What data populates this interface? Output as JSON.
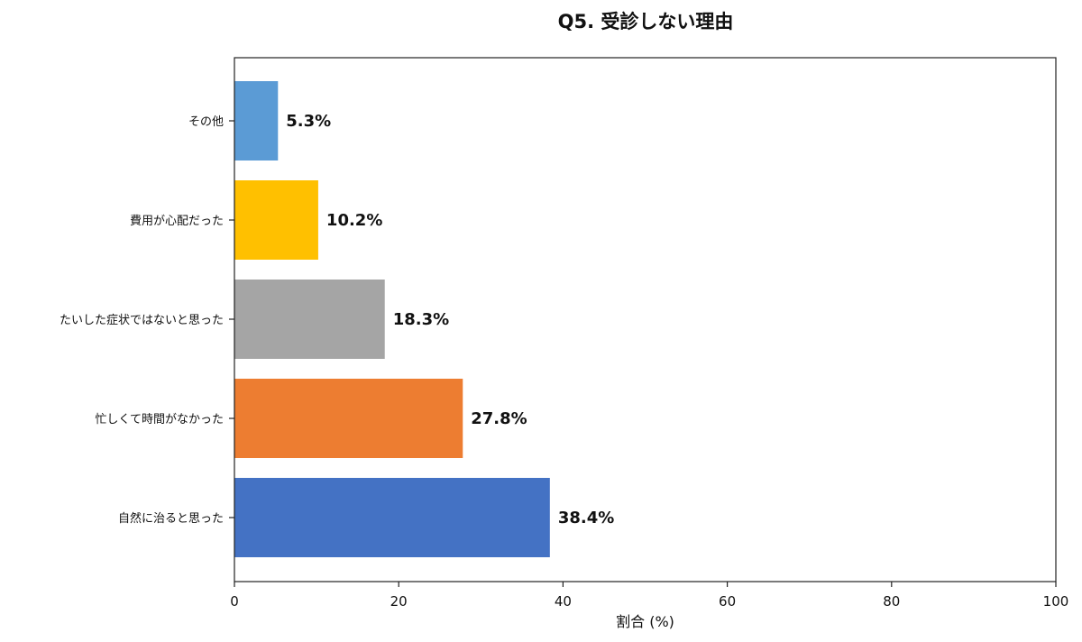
{
  "chart_data": {
    "type": "bar",
    "orientation": "horizontal",
    "title": "Q5. 受診しない理由",
    "xlabel": "割合 (%)",
    "ylabel": "",
    "xlim": [
      0,
      100
    ],
    "x_ticks": [
      "0",
      "20",
      "40",
      "60",
      "80",
      "100"
    ],
    "grid": false,
    "categories": [
      "自然に治ると思った",
      "忙しくて時間がなかった",
      "たいした症状ではないと思った",
      "費用が心配だった",
      "その他"
    ],
    "values": [
      38.4,
      27.8,
      18.3,
      10.2,
      5.3
    ],
    "value_labels": [
      "38.4%",
      "27.8%",
      "18.3%",
      "10.2%",
      "5.3%"
    ],
    "colors": [
      "#4472C4",
      "#ED7D31",
      "#A5A5A5",
      "#FFC000",
      "#5B9BD5"
    ]
  }
}
